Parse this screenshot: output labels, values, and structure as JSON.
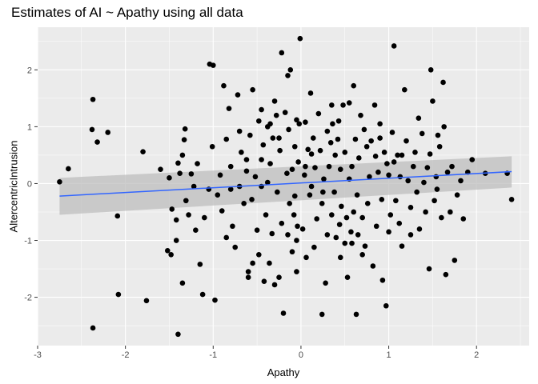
{
  "chart_data": {
    "type": "scatter",
    "title": "Estimates of AI ~ Apathy using all data",
    "xlabel": "Apathy",
    "ylabel": "AltercentricIntrusion",
    "xlim": [
      -3.0,
      2.6
    ],
    "ylim": [
      -2.85,
      2.75
    ],
    "xticks": [
      -3,
      -2,
      -1,
      0,
      1,
      2
    ],
    "yticks": [
      -2,
      -1,
      0,
      1,
      2
    ],
    "grid": true,
    "colors": {
      "panel_background": "#ebebeb",
      "grid_line": "#ffffff",
      "point": "#000000",
      "fit_line": "#3366ff",
      "confidence_band": "#bdbdbd"
    },
    "regression": {
      "x": [
        -2.75,
        2.4
      ],
      "y": [
        -0.22,
        0.21
      ],
      "ci_lower": [
        -0.55,
        -0.07
      ],
      "ci_upper": [
        0.1,
        0.48
      ]
    },
    "points": [
      [
        -2.75,
        0.03
      ],
      [
        -2.65,
        0.26
      ],
      [
        -2.37,
        1.48
      ],
      [
        -2.38,
        0.95
      ],
      [
        -2.32,
        0.73
      ],
      [
        -2.2,
        0.9
      ],
      [
        -2.09,
        -0.57
      ],
      [
        -2.08,
        -1.95
      ],
      [
        -2.37,
        -2.54
      ],
      [
        -1.8,
        0.56
      ],
      [
        -1.76,
        -2.06
      ],
      [
        -1.6,
        0.25
      ],
      [
        -1.5,
        0.1
      ],
      [
        -1.52,
        -1.18
      ],
      [
        -1.48,
        -1.25
      ],
      [
        -1.47,
        -0.45
      ],
      [
        -1.42,
        -0.64
      ],
      [
        -1.42,
        -1.0
      ],
      [
        -1.38,
        0.18
      ],
      [
        -1.4,
        0.36
      ],
      [
        -1.35,
        0.5
      ],
      [
        -1.32,
        0.96
      ],
      [
        -1.33,
        0.77
      ],
      [
        -1.31,
        -0.3
      ],
      [
        -1.28,
        -0.55
      ],
      [
        -1.25,
        0.17
      ],
      [
        -1.22,
        -0.05
      ],
      [
        -1.2,
        -0.82
      ],
      [
        -1.18,
        0.35
      ],
      [
        -1.15,
        -1.42
      ],
      [
        -1.12,
        -1.95
      ],
      [
        -1.1,
        -0.6
      ],
      [
        -1.05,
        -0.1
      ],
      [
        -1.04,
        2.1
      ],
      [
        -1.0,
        2.08
      ],
      [
        -1.01,
        0.65
      ],
      [
        -0.98,
        -2.05
      ],
      [
        -1.4,
        -2.65
      ],
      [
        -1.35,
        -1.75
      ],
      [
        -0.95,
        -0.2
      ],
      [
        -0.92,
        0.15
      ],
      [
        -0.9,
        -0.48
      ],
      [
        -0.88,
        1.72
      ],
      [
        -0.85,
        0.78
      ],
      [
        -0.82,
        1.32
      ],
      [
        -0.8,
        0.3
      ],
      [
        -0.8,
        -0.1
      ],
      [
        -0.78,
        -0.75
      ],
      [
        -0.75,
        -1.12
      ],
      [
        -0.72,
        1.56
      ],
      [
        -0.7,
        0.92
      ],
      [
        -0.68,
        0.55
      ],
      [
        -0.65,
        -0.35
      ],
      [
        -0.62,
        0.22
      ],
      [
        -0.6,
        -1.55
      ],
      [
        -0.6,
        -1.65
      ],
      [
        -0.58,
        0.85
      ],
      [
        -0.56,
        -0.28
      ],
      [
        -0.55,
        1.65
      ],
      [
        -0.52,
        0.12
      ],
      [
        -0.5,
        -0.82
      ],
      [
        -0.48,
        1.1
      ],
      [
        -0.48,
        -1.25
      ],
      [
        -0.45,
        0.42
      ],
      [
        -0.45,
        1.3
      ],
      [
        -0.43,
        0.68
      ],
      [
        -0.42,
        -1.72
      ],
      [
        -0.4,
        -0.55
      ],
      [
        -0.38,
        0.02
      ],
      [
        -0.38,
        1.0
      ],
      [
        -0.36,
        -1.4
      ],
      [
        -0.35,
        0.35
      ],
      [
        -0.33,
        -0.88
      ],
      [
        -0.32,
        0.8
      ],
      [
        -0.3,
        -1.78
      ],
      [
        -0.28,
        1.2
      ],
      [
        -0.27,
        -0.15
      ],
      [
        -0.25,
        -1.65
      ],
      [
        -0.24,
        0.58
      ],
      [
        -0.22,
        2.3
      ],
      [
        -0.22,
        -0.7
      ],
      [
        -0.2,
        -2.28
      ],
      [
        -0.18,
        1.25
      ],
      [
        -0.16,
        0.18
      ],
      [
        -0.15,
        1.9
      ],
      [
        -0.14,
        0.95
      ],
      [
        -0.13,
        -0.35
      ],
      [
        -0.12,
        2.0
      ],
      [
        -0.1,
        -1.2
      ],
      [
        -0.1,
        0.25
      ],
      [
        -0.08,
        -0.55
      ],
      [
        -0.07,
        0.65
      ],
      [
        -0.05,
        -1.0
      ],
      [
        -0.05,
        -1.55
      ],
      [
        -0.03,
        0.38
      ],
      [
        -0.02,
        1.05
      ],
      [
        -0.01,
        2.55
      ],
      [
        -0.05,
        1.12
      ],
      [
        -0.07,
        -0.22
      ],
      [
        -0.04,
        -0.75
      ],
      [
        0.02,
        -0.8
      ],
      [
        0.04,
        0.15
      ],
      [
        0.05,
        0.3
      ],
      [
        0.06,
        -1.3
      ],
      [
        0.08,
        0.6
      ],
      [
        0.1,
        -0.2
      ],
      [
        0.11,
        1.59
      ],
      [
        0.12,
        -0.05
      ],
      [
        0.14,
        0.8
      ],
      [
        0.15,
        -1.12
      ],
      [
        0.16,
        0.28
      ],
      [
        0.18,
        -0.62
      ],
      [
        0.2,
        1.23
      ],
      [
        0.22,
        0.58
      ],
      [
        0.24,
        -2.3
      ],
      [
        0.24,
        -0.35
      ],
      [
        0.26,
        0.08
      ],
      [
        0.28,
        -1.75
      ],
      [
        0.3,
        0.92
      ],
      [
        0.3,
        -0.9
      ],
      [
        0.32,
        0.3
      ],
      [
        0.34,
        0.72
      ],
      [
        0.35,
        -0.55
      ],
      [
        0.36,
        1.05
      ],
      [
        0.38,
        -0.15
      ],
      [
        0.39,
        0.5
      ],
      [
        0.4,
        -0.95
      ],
      [
        0.42,
        0.78
      ],
      [
        0.43,
        1.1
      ],
      [
        0.44,
        -0.72
      ],
      [
        0.45,
        0.25
      ],
      [
        0.46,
        -0.4
      ],
      [
        0.48,
        1.38
      ],
      [
        0.5,
        -1.05
      ],
      [
        0.5,
        0.55
      ],
      [
        0.52,
        -0.6
      ],
      [
        0.53,
        -1.65
      ],
      [
        0.55,
        0.08
      ],
      [
        0.55,
        1.42
      ],
      [
        0.57,
        -0.85
      ],
      [
        0.58,
        0.3
      ],
      [
        0.6,
        -0.5
      ],
      [
        0.6,
        1.72
      ],
      [
        0.62,
        0.78
      ],
      [
        0.63,
        -2.3
      ],
      [
        0.64,
        -0.2
      ],
      [
        0.66,
        0.45
      ],
      [
        0.68,
        1.2
      ],
      [
        0.7,
        -0.6
      ],
      [
        0.72,
        0.95
      ],
      [
        0.73,
        -1.1
      ],
      [
        0.75,
        0.65
      ],
      [
        0.76,
        -0.35
      ],
      [
        0.78,
        0.12
      ],
      [
        0.8,
        0.75
      ],
      [
        0.82,
        -1.45
      ],
      [
        0.84,
        1.38
      ],
      [
        0.85,
        0.48
      ],
      [
        0.86,
        -0.75
      ],
      [
        0.88,
        0.2
      ],
      [
        0.9,
        0.8
      ],
      [
        0.92,
        -0.28
      ],
      [
        0.93,
        -1.7
      ],
      [
        0.95,
        0.55
      ],
      [
        0.97,
        -2.15
      ],
      [
        0.98,
        0.35
      ],
      [
        1.0,
        -0.85
      ],
      [
        1.0,
        0.15
      ],
      [
        1.02,
        -0.55
      ],
      [
        1.04,
        0.9
      ],
      [
        1.06,
        0.38
      ],
      [
        1.06,
        2.42
      ],
      [
        1.08,
        -0.3
      ],
      [
        1.1,
        0.5
      ],
      [
        1.12,
        -0.7
      ],
      [
        1.13,
        0.12
      ],
      [
        1.15,
        -1.1
      ],
      [
        1.18,
        1.65
      ],
      [
        1.2,
        0.75
      ],
      [
        1.22,
        0.05
      ],
      [
        1.25,
        -0.42
      ],
      [
        1.28,
        0.3
      ],
      [
        1.3,
        0.55
      ],
      [
        1.32,
        -0.15
      ],
      [
        1.34,
        1.15
      ],
      [
        1.35,
        -0.8
      ],
      [
        1.38,
        0.88
      ],
      [
        1.4,
        0.02
      ],
      [
        1.42,
        -0.5
      ],
      [
        1.44,
        0.28
      ],
      [
        1.46,
        -1.5
      ],
      [
        1.47,
        0.52
      ],
      [
        1.48,
        2.0
      ],
      [
        1.5,
        1.45
      ],
      [
        1.52,
        -0.3
      ],
      [
        1.54,
        0.12
      ],
      [
        1.55,
        -0.1
      ],
      [
        1.56,
        0.85
      ],
      [
        1.58,
        0.65
      ],
      [
        1.6,
        -0.6
      ],
      [
        1.62,
        1.78
      ],
      [
        1.63,
        1.0
      ],
      [
        1.65,
        -1.6
      ],
      [
        1.67,
        0.2
      ],
      [
        1.7,
        -0.5
      ],
      [
        1.72,
        0.3
      ],
      [
        1.75,
        -1.35
      ],
      [
        1.78,
        -0.2
      ],
      [
        1.82,
        0.05
      ],
      [
        1.85,
        -0.62
      ],
      [
        1.9,
        0.2
      ],
      [
        1.95,
        0.42
      ],
      [
        2.1,
        0.18
      ],
      [
        2.35,
        0.18
      ],
      [
        2.4,
        -0.28
      ],
      [
        -0.55,
        -1.4
      ],
      [
        -0.35,
        1.05
      ],
      [
        0.25,
        -0.15
      ],
      [
        0.7,
        -1.25
      ],
      [
        0.9,
        1.05
      ],
      [
        -0.62,
        0.42
      ],
      [
        0.12,
        0.52
      ],
      [
        -0.25,
        0.8
      ],
      [
        0.45,
        -1.3
      ],
      [
        1.15,
        0.5
      ],
      [
        -0.85,
        -0.95
      ],
      [
        0.35,
        1.38
      ],
      [
        -0.15,
        -0.9
      ],
      [
        0.65,
        -0.9
      ],
      [
        -0.7,
        -0.05
      ],
      [
        0.05,
        1.08
      ],
      [
        -0.45,
        -0.05
      ],
      [
        0.58,
        -1.05
      ],
      [
        1.25,
        -0.9
      ],
      [
        -0.3,
        1.45
      ]
    ]
  }
}
